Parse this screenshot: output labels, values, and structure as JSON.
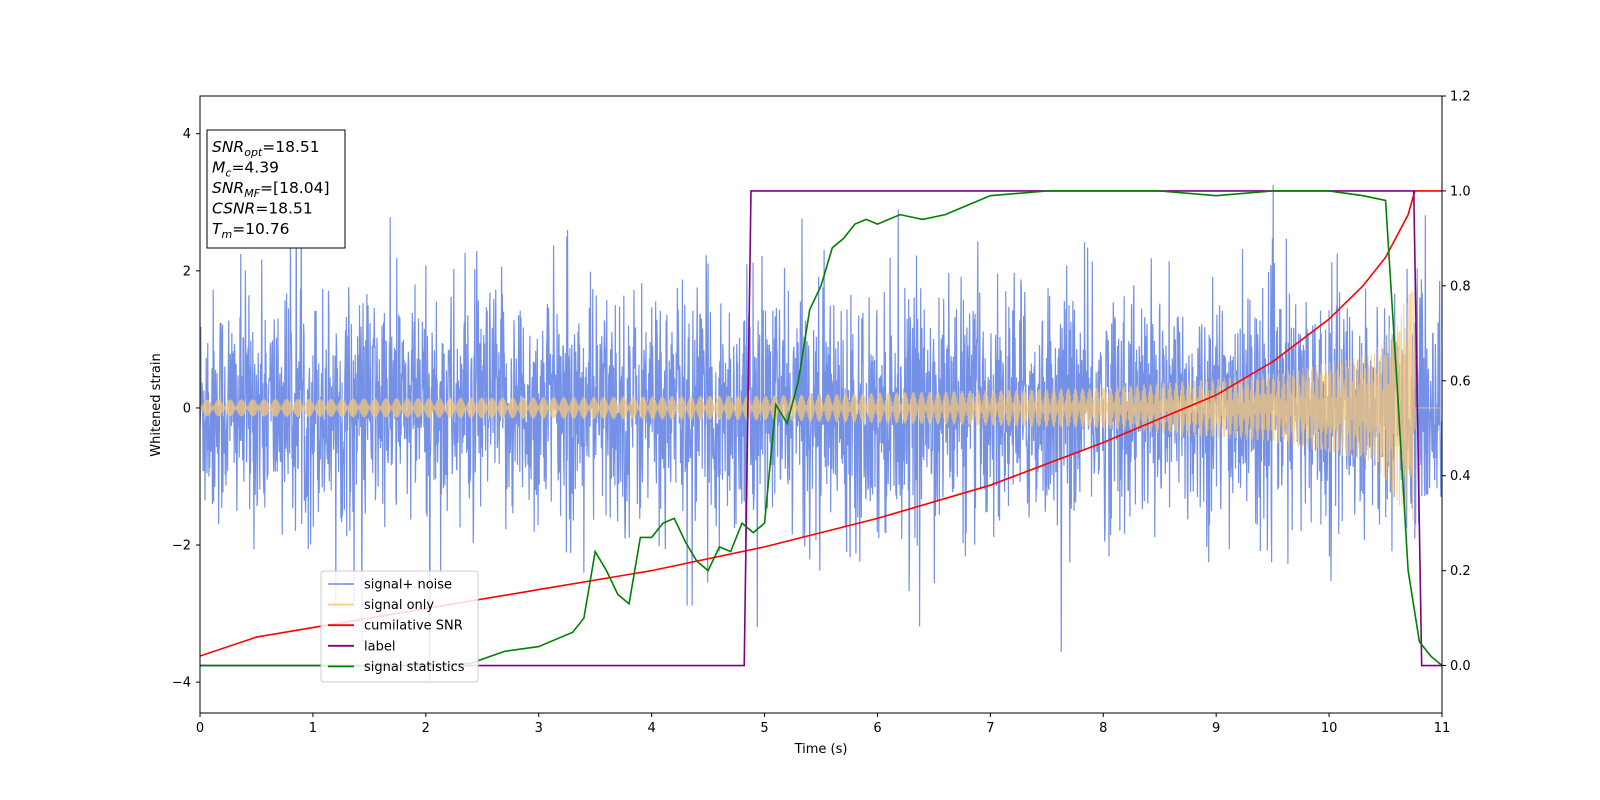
{
  "chart_data": {
    "type": "line",
    "xlabel": "Time (s)",
    "ylabel": "Whitened strain",
    "xlim": [
      0,
      11
    ],
    "ylim_left": [
      -4.45,
      4.55
    ],
    "ylim_right": [
      -0.1,
      1.2
    ],
    "x_ticks": [
      0,
      1,
      2,
      3,
      4,
      5,
      6,
      7,
      8,
      9,
      10,
      11
    ],
    "y_left_ticks": [
      -4,
      -2,
      0,
      2,
      4
    ],
    "y_right_ticks": [
      0.0,
      0.2,
      0.4,
      0.6,
      0.8,
      1.0,
      1.2
    ],
    "grid": false,
    "legend_position": "lower-left",
    "annotation": {
      "lines": [
        {
          "name": "SNR",
          "sub": "opt",
          "value": "=18.51"
        },
        {
          "name": "M",
          "sub": "c",
          "value": "=4.39"
        },
        {
          "name": "SNR",
          "sub": "MF",
          "value": "=[18.04]"
        },
        {
          "name": "CSNR",
          "sub": "",
          "value": "=18.51"
        },
        {
          "name": "T",
          "sub": "m",
          "value": "=10.76"
        }
      ]
    },
    "series": [
      {
        "name": "signal+ noise",
        "axis": "left",
        "color": "#6d8ae6",
        "description": "whitened noisy strain, envelope approx ±2 (spikes to ±4)",
        "t_start": 0,
        "t_end": 11,
        "envelope": 2.0
      },
      {
        "name": "signal only",
        "axis": "left",
        "color": "#f5c77a",
        "description": "chirp signal, amplitude grows toward merger",
        "t_start": 0,
        "t_merge": 10.76,
        "amplitude_keys": [
          [
            0,
            0.12
          ],
          [
            5,
            0.18
          ],
          [
            8,
            0.3
          ],
          [
            9.5,
            0.5
          ],
          [
            10.4,
            0.8
          ],
          [
            10.76,
            1.8
          ]
        ]
      },
      {
        "name": "cumilative SNR",
        "axis": "right",
        "color": "#ff0000",
        "points": [
          [
            0,
            0.02
          ],
          [
            0.5,
            0.06
          ],
          [
            1,
            0.08
          ],
          [
            2,
            0.12
          ],
          [
            3,
            0.16
          ],
          [
            4,
            0.2
          ],
          [
            5,
            0.25
          ],
          [
            6,
            0.31
          ],
          [
            7,
            0.38
          ],
          [
            8,
            0.47
          ],
          [
            9,
            0.57
          ],
          [
            9.5,
            0.64
          ],
          [
            10,
            0.73
          ],
          [
            10.3,
            0.8
          ],
          [
            10.5,
            0.86
          ],
          [
            10.7,
            0.95
          ],
          [
            10.76,
            1.0
          ],
          [
            11,
            1.0
          ]
        ]
      },
      {
        "name": "label",
        "axis": "right",
        "color": "#800080",
        "points": [
          [
            0,
            0.0
          ],
          [
            4.82,
            0.0
          ],
          [
            4.88,
            1.0
          ],
          [
            10.75,
            1.0
          ],
          [
            10.82,
            0.0
          ],
          [
            11,
            0.0
          ]
        ]
      },
      {
        "name": "signal statistics",
        "axis": "right",
        "color": "#008000",
        "points": [
          [
            0,
            0.0
          ],
          [
            1,
            0.0
          ],
          [
            2,
            0.0
          ],
          [
            2.4,
            0.005
          ],
          [
            2.7,
            0.03
          ],
          [
            3,
            0.04
          ],
          [
            3.2,
            0.06
          ],
          [
            3.3,
            0.07
          ],
          [
            3.4,
            0.1
          ],
          [
            3.5,
            0.24
          ],
          [
            3.6,
            0.2
          ],
          [
            3.7,
            0.15
          ],
          [
            3.8,
            0.13
          ],
          [
            3.9,
            0.27
          ],
          [
            4.0,
            0.27
          ],
          [
            4.1,
            0.3
          ],
          [
            4.2,
            0.31
          ],
          [
            4.3,
            0.26
          ],
          [
            4.4,
            0.22
          ],
          [
            4.5,
            0.2
          ],
          [
            4.6,
            0.25
          ],
          [
            4.7,
            0.24
          ],
          [
            4.8,
            0.3
          ],
          [
            4.9,
            0.28
          ],
          [
            5.0,
            0.3
          ],
          [
            5.1,
            0.55
          ],
          [
            5.2,
            0.51
          ],
          [
            5.3,
            0.6
          ],
          [
            5.4,
            0.75
          ],
          [
            5.5,
            0.8
          ],
          [
            5.6,
            0.88
          ],
          [
            5.7,
            0.9
          ],
          [
            5.8,
            0.93
          ],
          [
            5.9,
            0.94
          ],
          [
            6.0,
            0.93
          ],
          [
            6.2,
            0.95
          ],
          [
            6.4,
            0.94
          ],
          [
            6.6,
            0.95
          ],
          [
            6.8,
            0.97
          ],
          [
            7.0,
            0.99
          ],
          [
            7.5,
            1.0
          ],
          [
            8.0,
            1.0
          ],
          [
            8.5,
            1.0
          ],
          [
            9.0,
            0.99
          ],
          [
            9.5,
            1.0
          ],
          [
            10.0,
            1.0
          ],
          [
            10.3,
            0.99
          ],
          [
            10.5,
            0.98
          ],
          [
            10.6,
            0.6
          ],
          [
            10.7,
            0.2
          ],
          [
            10.8,
            0.05
          ],
          [
            10.9,
            0.02
          ],
          [
            11,
            0.0
          ]
        ]
      }
    ]
  }
}
